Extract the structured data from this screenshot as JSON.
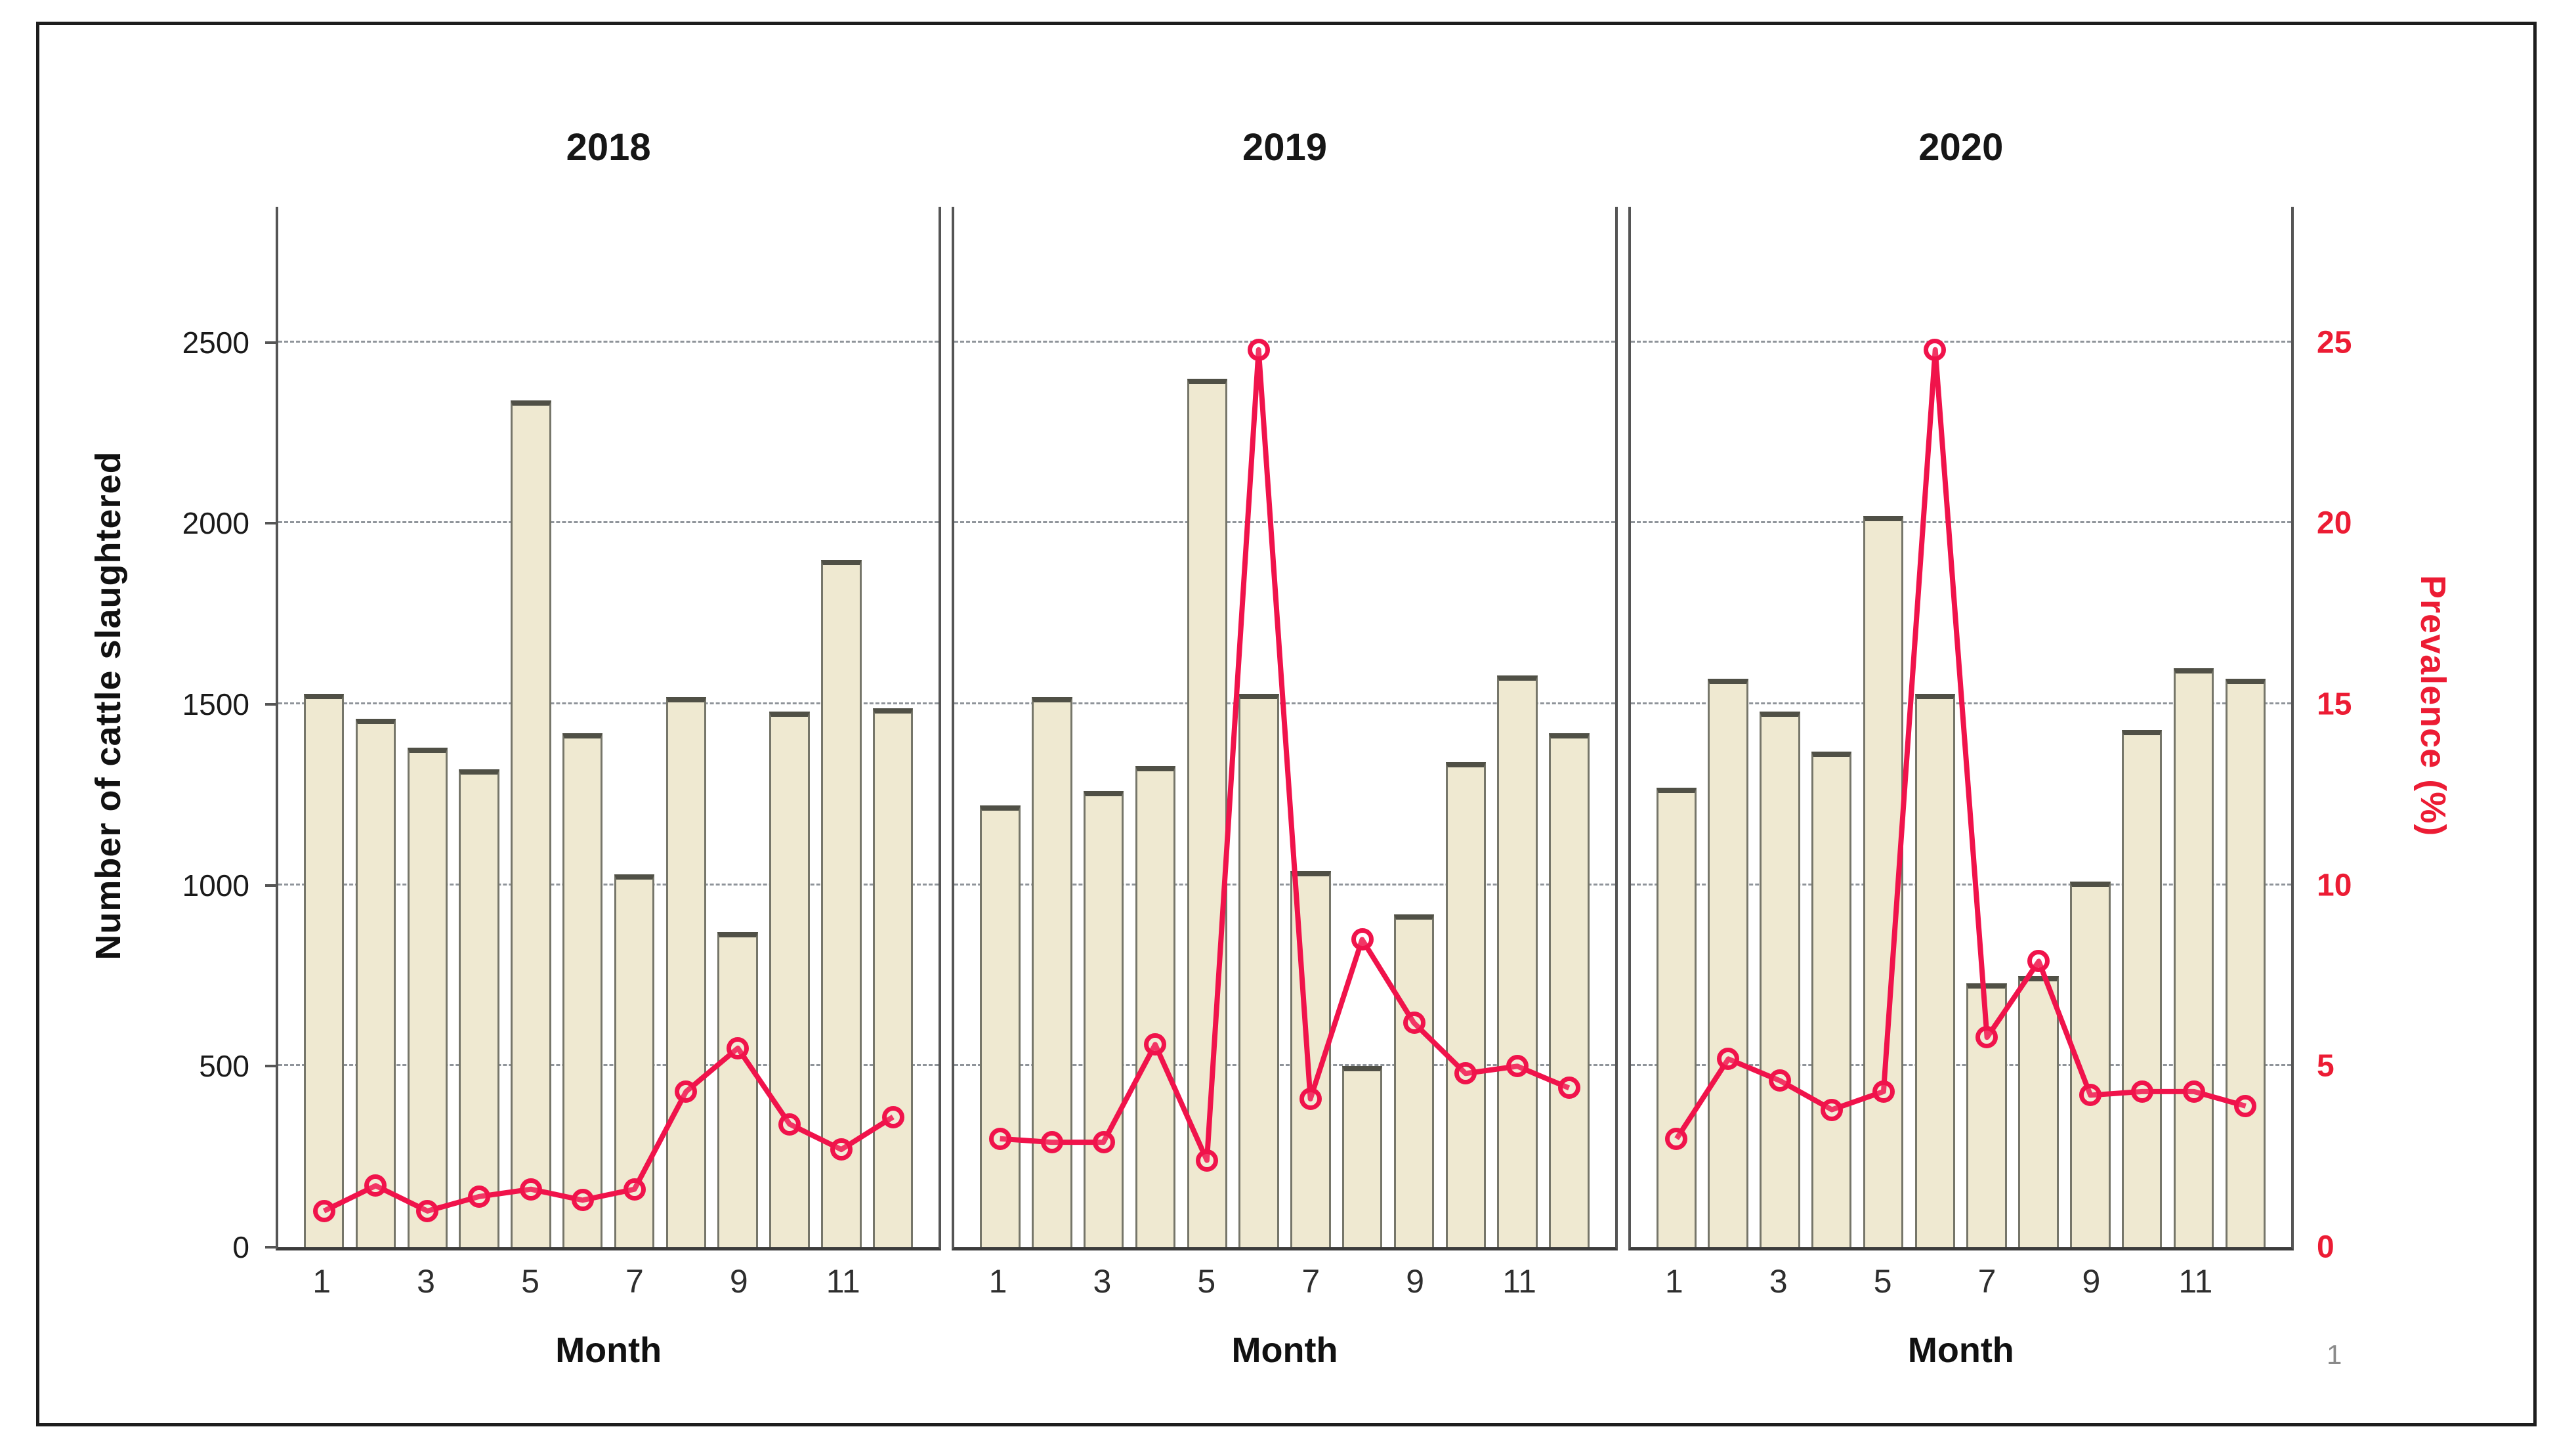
{
  "page": {
    "number": "1"
  },
  "figure": {
    "background": "#ffffff",
    "border_color": "#1d1d1d"
  },
  "chart": {
    "panel_titles": [
      "2018",
      "2019",
      "2020"
    ],
    "left_axis": {
      "title": "Number of cattle slaughtered",
      "tick_values": [
        0,
        500,
        1000,
        1500,
        2000,
        2500
      ],
      "color": "#1a1a1a"
    },
    "right_axis": {
      "title": "Prevalence (%)",
      "tick_values": [
        0,
        5,
        10,
        15,
        20,
        25
      ],
      "color": "#ec1c34"
    },
    "x_axis": {
      "title": "Month",
      "tick_labels": [
        "1",
        "3",
        "5",
        "7",
        "9",
        "11"
      ]
    },
    "style": {
      "bar_fill": "#efe9d1",
      "bar_border": "#76766a",
      "bar_top": "#505046",
      "line_color": "#f0134b",
      "grid_color": "#8f949a",
      "panel_border": "#555555"
    }
  },
  "chart_data": [
    {
      "type": "bar+line",
      "title": "2018",
      "x": [
        1,
        2,
        3,
        4,
        5,
        6,
        7,
        8,
        9,
        10,
        11,
        12
      ],
      "xlabel": "Month",
      "x_ticks_shown": [
        1,
        3,
        5,
        7,
        9,
        11
      ],
      "series": [
        {
          "name": "Number of cattle slaughtered",
          "type": "bar",
          "axis": "left",
          "values": [
            1530,
            1460,
            1380,
            1320,
            2340,
            1420,
            1030,
            1520,
            870,
            1480,
            1900,
            1490
          ]
        },
        {
          "name": "Prevalence (%)",
          "type": "line",
          "axis": "right",
          "values": [
            1.0,
            1.7,
            1.0,
            1.4,
            1.6,
            1.3,
            1.6,
            4.3,
            5.5,
            3.4,
            2.7,
            3.6
          ]
        }
      ],
      "left_ylim": [
        0,
        2875
      ],
      "right_ylim": [
        0,
        28.75
      ],
      "gridlines": [
        500,
        1000,
        1500,
        2000,
        2500
      ],
      "grid": "dashed-horizontal",
      "legend": "none"
    },
    {
      "type": "bar+line",
      "title": "2019",
      "x": [
        1,
        2,
        3,
        4,
        5,
        6,
        7,
        8,
        9,
        10,
        11,
        12
      ],
      "xlabel": "Month",
      "x_ticks_shown": [
        1,
        3,
        5,
        7,
        9,
        11
      ],
      "series": [
        {
          "name": "Number of cattle slaughtered",
          "type": "bar",
          "axis": "left",
          "values": [
            1220,
            1520,
            1260,
            1330,
            2400,
            1530,
            1040,
            500,
            920,
            1340,
            1580,
            1420
          ]
        },
        {
          "name": "Prevalence (%)",
          "type": "line",
          "axis": "right",
          "values": [
            3.0,
            2.9,
            2.9,
            5.6,
            2.4,
            24.8,
            4.1,
            8.5,
            6.2,
            4.8,
            5.0,
            4.4
          ]
        }
      ],
      "left_ylim": [
        0,
        2875
      ],
      "right_ylim": [
        0,
        28.75
      ],
      "gridlines": [
        500,
        1000,
        1500,
        2000,
        2500
      ],
      "grid": "dashed-horizontal",
      "legend": "none"
    },
    {
      "type": "bar+line",
      "title": "2020",
      "x": [
        1,
        2,
        3,
        4,
        5,
        6,
        7,
        8,
        9,
        10,
        11,
        12
      ],
      "xlabel": "Month",
      "x_ticks_shown": [
        1,
        3,
        5,
        7,
        9,
        11
      ],
      "series": [
        {
          "name": "Number of cattle slaughtered",
          "type": "bar",
          "axis": "left",
          "values": [
            1270,
            1570,
            1480,
            1370,
            2020,
            1530,
            730,
            750,
            1010,
            1430,
            1600,
            1570
          ]
        },
        {
          "name": "Prevalence (%)",
          "type": "line",
          "axis": "right",
          "values": [
            3.0,
            5.2,
            4.6,
            3.8,
            4.3,
            24.8,
            5.8,
            7.9,
            4.2,
            4.3,
            4.3,
            3.9
          ]
        }
      ],
      "left_ylim": [
        0,
        2875
      ],
      "right_ylim": [
        0,
        28.75
      ],
      "gridlines": [
        500,
        1000,
        1500,
        2000,
        2500
      ],
      "grid": "dashed-horizontal",
      "legend": "none"
    }
  ]
}
